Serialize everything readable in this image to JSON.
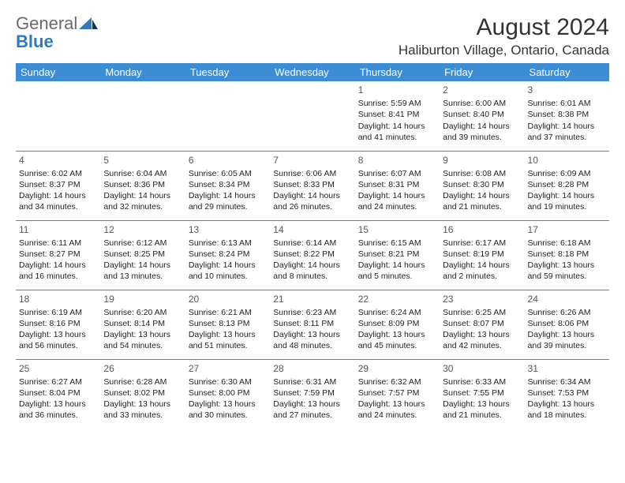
{
  "brand": {
    "line1": "General",
    "line2": "Blue"
  },
  "title": "August 2024",
  "location": "Haliburton Village, Ontario, Canada",
  "colors": {
    "header_bg": "#3c8dd4",
    "header_text": "#ffffff",
    "rule": "#3c8dd4",
    "logo_gray": "#6a6a6a",
    "logo_blue": "#2f78c4"
  },
  "day_names": [
    "Sunday",
    "Monday",
    "Tuesday",
    "Wednesday",
    "Thursday",
    "Friday",
    "Saturday"
  ],
  "weeks": [
    [
      null,
      null,
      null,
      null,
      {
        "n": "1",
        "sr": "5:59 AM",
        "ss": "8:41 PM",
        "dl1": "14 hours",
        "dl2": "and 41 minutes."
      },
      {
        "n": "2",
        "sr": "6:00 AM",
        "ss": "8:40 PM",
        "dl1": "14 hours",
        "dl2": "and 39 minutes."
      },
      {
        "n": "3",
        "sr": "6:01 AM",
        "ss": "8:38 PM",
        "dl1": "14 hours",
        "dl2": "and 37 minutes."
      }
    ],
    [
      {
        "n": "4",
        "sr": "6:02 AM",
        "ss": "8:37 PM",
        "dl1": "14 hours",
        "dl2": "and 34 minutes."
      },
      {
        "n": "5",
        "sr": "6:04 AM",
        "ss": "8:36 PM",
        "dl1": "14 hours",
        "dl2": "and 32 minutes."
      },
      {
        "n": "6",
        "sr": "6:05 AM",
        "ss": "8:34 PM",
        "dl1": "14 hours",
        "dl2": "and 29 minutes."
      },
      {
        "n": "7",
        "sr": "6:06 AM",
        "ss": "8:33 PM",
        "dl1": "14 hours",
        "dl2": "and 26 minutes."
      },
      {
        "n": "8",
        "sr": "6:07 AM",
        "ss": "8:31 PM",
        "dl1": "14 hours",
        "dl2": "and 24 minutes."
      },
      {
        "n": "9",
        "sr": "6:08 AM",
        "ss": "8:30 PM",
        "dl1": "14 hours",
        "dl2": "and 21 minutes."
      },
      {
        "n": "10",
        "sr": "6:09 AM",
        "ss": "8:28 PM",
        "dl1": "14 hours",
        "dl2": "and 19 minutes."
      }
    ],
    [
      {
        "n": "11",
        "sr": "6:11 AM",
        "ss": "8:27 PM",
        "dl1": "14 hours",
        "dl2": "and 16 minutes."
      },
      {
        "n": "12",
        "sr": "6:12 AM",
        "ss": "8:25 PM",
        "dl1": "14 hours",
        "dl2": "and 13 minutes."
      },
      {
        "n": "13",
        "sr": "6:13 AM",
        "ss": "8:24 PM",
        "dl1": "14 hours",
        "dl2": "and 10 minutes."
      },
      {
        "n": "14",
        "sr": "6:14 AM",
        "ss": "8:22 PM",
        "dl1": "14 hours",
        "dl2": "and 8 minutes."
      },
      {
        "n": "15",
        "sr": "6:15 AM",
        "ss": "8:21 PM",
        "dl1": "14 hours",
        "dl2": "and 5 minutes."
      },
      {
        "n": "16",
        "sr": "6:17 AM",
        "ss": "8:19 PM",
        "dl1": "14 hours",
        "dl2": "and 2 minutes."
      },
      {
        "n": "17",
        "sr": "6:18 AM",
        "ss": "8:18 PM",
        "dl1": "13 hours",
        "dl2": "and 59 minutes."
      }
    ],
    [
      {
        "n": "18",
        "sr": "6:19 AM",
        "ss": "8:16 PM",
        "dl1": "13 hours",
        "dl2": "and 56 minutes."
      },
      {
        "n": "19",
        "sr": "6:20 AM",
        "ss": "8:14 PM",
        "dl1": "13 hours",
        "dl2": "and 54 minutes."
      },
      {
        "n": "20",
        "sr": "6:21 AM",
        "ss": "8:13 PM",
        "dl1": "13 hours",
        "dl2": "and 51 minutes."
      },
      {
        "n": "21",
        "sr": "6:23 AM",
        "ss": "8:11 PM",
        "dl1": "13 hours",
        "dl2": "and 48 minutes."
      },
      {
        "n": "22",
        "sr": "6:24 AM",
        "ss": "8:09 PM",
        "dl1": "13 hours",
        "dl2": "and 45 minutes."
      },
      {
        "n": "23",
        "sr": "6:25 AM",
        "ss": "8:07 PM",
        "dl1": "13 hours",
        "dl2": "and 42 minutes."
      },
      {
        "n": "24",
        "sr": "6:26 AM",
        "ss": "8:06 PM",
        "dl1": "13 hours",
        "dl2": "and 39 minutes."
      }
    ],
    [
      {
        "n": "25",
        "sr": "6:27 AM",
        "ss": "8:04 PM",
        "dl1": "13 hours",
        "dl2": "and 36 minutes."
      },
      {
        "n": "26",
        "sr": "6:28 AM",
        "ss": "8:02 PM",
        "dl1": "13 hours",
        "dl2": "and 33 minutes."
      },
      {
        "n": "27",
        "sr": "6:30 AM",
        "ss": "8:00 PM",
        "dl1": "13 hours",
        "dl2": "and 30 minutes."
      },
      {
        "n": "28",
        "sr": "6:31 AM",
        "ss": "7:59 PM",
        "dl1": "13 hours",
        "dl2": "and 27 minutes."
      },
      {
        "n": "29",
        "sr": "6:32 AM",
        "ss": "7:57 PM",
        "dl1": "13 hours",
        "dl2": "and 24 minutes."
      },
      {
        "n": "30",
        "sr": "6:33 AM",
        "ss": "7:55 PM",
        "dl1": "13 hours",
        "dl2": "and 21 minutes."
      },
      {
        "n": "31",
        "sr": "6:34 AM",
        "ss": "7:53 PM",
        "dl1": "13 hours",
        "dl2": "and 18 minutes."
      }
    ]
  ],
  "labels": {
    "sunrise": "Sunrise:",
    "sunset": "Sunset:",
    "daylight": "Daylight:"
  }
}
